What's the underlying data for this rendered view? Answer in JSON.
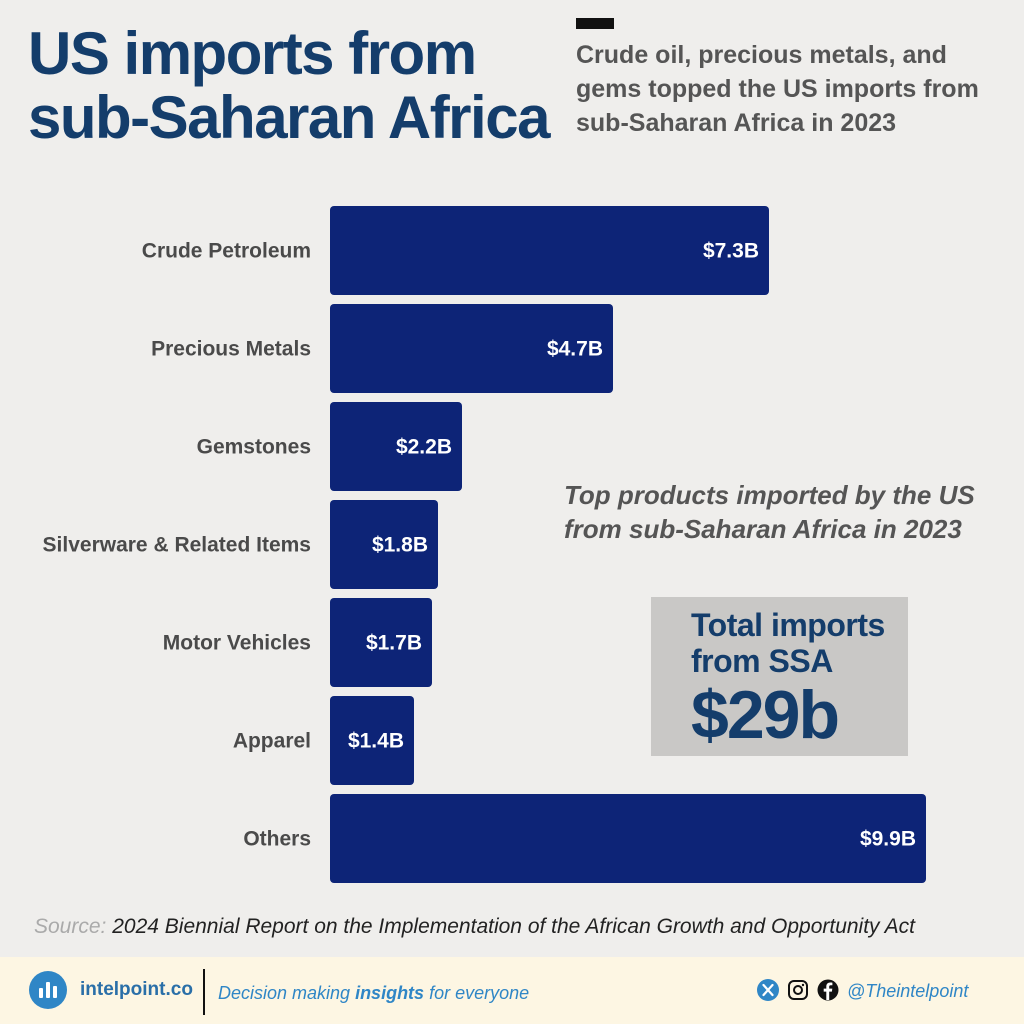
{
  "header": {
    "title_line1": "US imports from",
    "title_line2": "sub-Saharan Africa",
    "subtitle": "Crude oil, precious metals, and gems topped the US imports from sub-Saharan Africa in 2023"
  },
  "chart_data": {
    "type": "bar",
    "orientation": "horizontal",
    "categories": [
      "Crude Petroleum",
      "Precious Metals",
      "Gemstones",
      "Silverware & Related Items",
      "Motor Vehicles",
      "Apparel",
      "Others"
    ],
    "values": [
      7.3,
      4.7,
      2.2,
      1.8,
      1.7,
      1.4,
      9.9
    ],
    "value_labels": [
      "$7.3B",
      "$4.7B",
      "$2.2B",
      "$1.8B",
      "$1.7B",
      "$1.4B",
      "$9.9B"
    ],
    "unit": "B",
    "bar_color": "#0d2477",
    "grid": false,
    "legend": "none"
  },
  "annotation": "Top products imported by the US from sub-Saharan Africa in 2023",
  "total_box": {
    "label": "Total imports from SSA",
    "value": "$29b"
  },
  "source": {
    "label": "Source:",
    "text": "2024 Biennial Report on the Implementation of the African Growth and Opportunity Act"
  },
  "footer": {
    "brand": "intelpoint.co",
    "tagline_pre": "Decision making ",
    "tagline_bold": "insights",
    "tagline_post": " for everyone",
    "handle": "@Theintelpoint",
    "icons": [
      "x-icon",
      "instagram-icon",
      "facebook-icon"
    ]
  },
  "colors": {
    "title": "#143d6b",
    "bar": "#0d2477",
    "background": "#efeeec",
    "footer_bg": "#fdf6e3",
    "brand_blue": "#2f86c6"
  }
}
